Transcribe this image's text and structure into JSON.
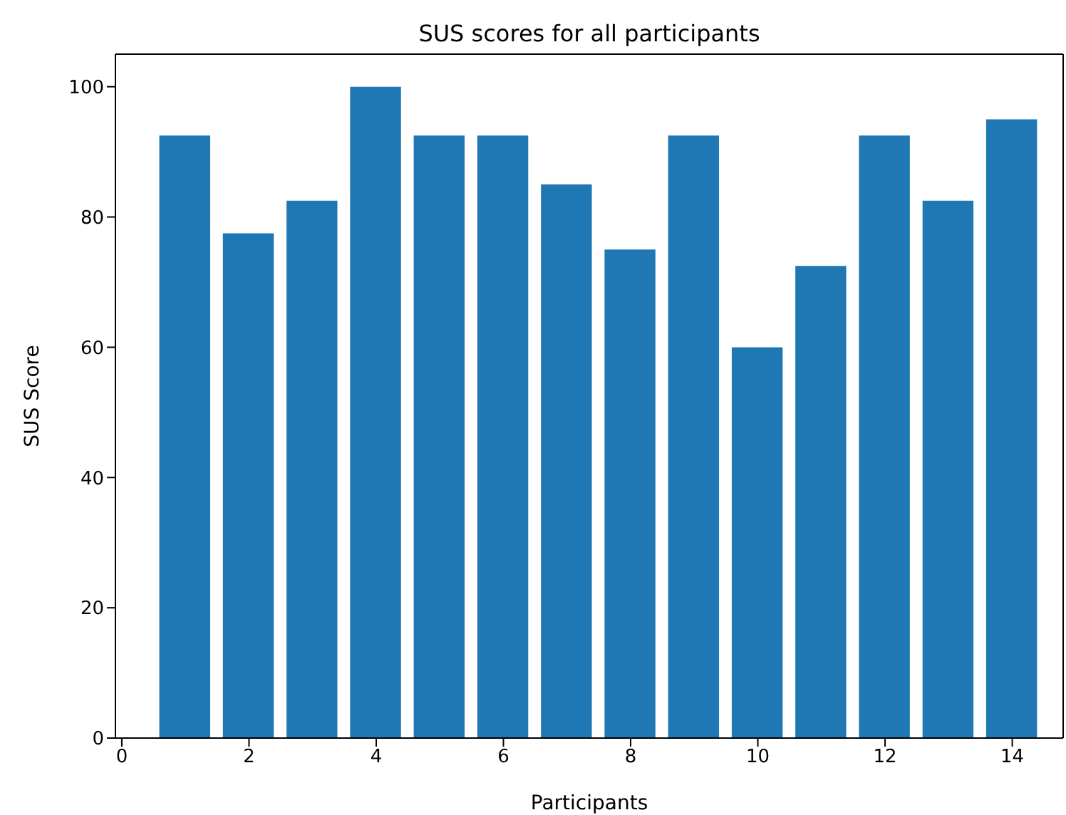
{
  "chart_data": {
    "type": "bar",
    "title": "SUS scores for all participants",
    "xlabel": "Participants",
    "ylabel": "SUS Score",
    "x": [
      1,
      2,
      3,
      4,
      5,
      6,
      7,
      8,
      9,
      10,
      11,
      12,
      13,
      14
    ],
    "values": [
      92.5,
      77.5,
      82.5,
      100,
      92.5,
      92.5,
      85,
      75,
      92.5,
      60,
      72.5,
      92.5,
      82.5,
      95
    ],
    "color": "#1f77b4",
    "xlim": [
      -0.1,
      14.8
    ],
    "xticks": [
      0,
      2,
      4,
      6,
      8,
      10,
      12,
      14
    ],
    "ylim": [
      0,
      105
    ],
    "yticks": [
      0,
      20,
      40,
      60,
      80,
      100
    ],
    "grid": false
  }
}
